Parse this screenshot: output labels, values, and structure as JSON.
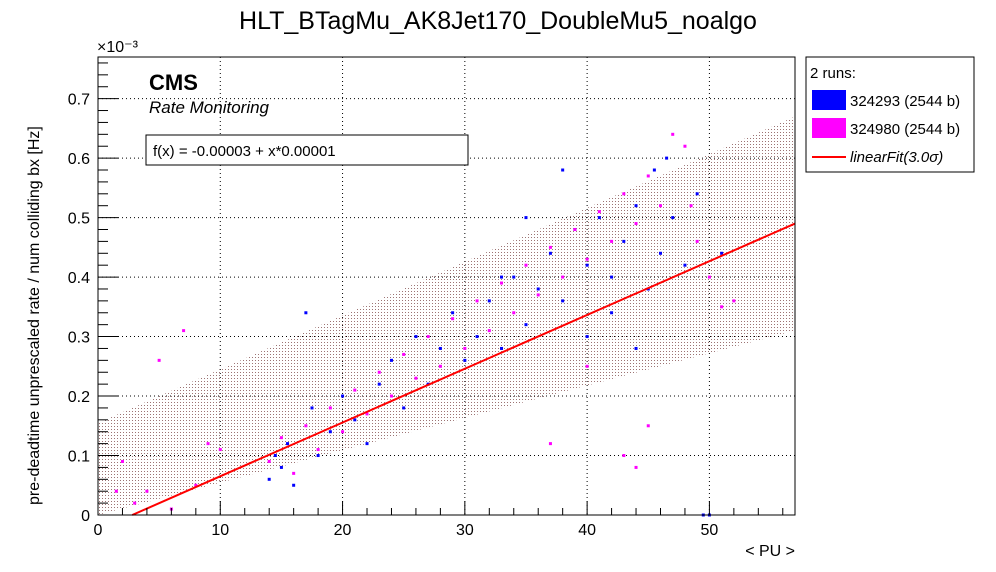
{
  "chart_data": {
    "type": "scatter",
    "title": "HLT_BTagMu_AK8Jet170_DoubleMu5_noalgo",
    "xlabel": "< PU >",
    "ylabel": "pre-deadtime unprescaled rate / num colliding bx [Hz]",
    "y_multiplier": "×10⁻³",
    "xlim": [
      0,
      57
    ],
    "ylim": [
      0,
      0.77
    ],
    "x_ticks": [
      "0",
      "10",
      "20",
      "30",
      "40",
      "50"
    ],
    "y_ticks": [
      "0",
      "0.1",
      "0.2",
      "0.3",
      "0.4",
      "0.5",
      "0.6",
      "0.7"
    ],
    "grid": true,
    "legend_position": "right, outside plot",
    "legend_header": "2 runs:",
    "series": [
      {
        "name": "324293 (2544 b)",
        "color": "#0000ff",
        "points": [
          [
            14,
            0.06
          ],
          [
            14.5,
            0.1
          ],
          [
            15,
            0.08
          ],
          [
            15.5,
            0.12
          ],
          [
            16,
            0.05
          ],
          [
            17,
            0.34
          ],
          [
            17.5,
            0.18
          ],
          [
            18,
            0.1
          ],
          [
            19,
            0.14
          ],
          [
            20,
            0.2
          ],
          [
            21,
            0.16
          ],
          [
            22,
            0.12
          ],
          [
            23,
            0.22
          ],
          [
            24,
            0.26
          ],
          [
            25,
            0.18
          ],
          [
            26,
            0.3
          ],
          [
            27,
            0.22
          ],
          [
            28,
            0.28
          ],
          [
            29,
            0.34
          ],
          [
            30,
            0.26
          ],
          [
            31,
            0.3
          ],
          [
            32,
            0.36
          ],
          [
            33,
            0.28
          ],
          [
            34,
            0.4
          ],
          [
            35,
            0.32
          ],
          [
            36,
            0.38
          ],
          [
            37,
            0.44
          ],
          [
            38,
            0.36
          ],
          [
            39,
            0.48
          ],
          [
            40,
            0.42
          ],
          [
            41,
            0.5
          ],
          [
            42,
            0.4
          ],
          [
            43,
            0.46
          ],
          [
            44,
            0.52
          ],
          [
            45,
            0.38
          ],
          [
            45.5,
            0.58
          ],
          [
            46,
            0.44
          ],
          [
            46.5,
            0.6
          ],
          [
            47,
            0.5
          ],
          [
            48,
            0.42
          ],
          [
            49,
            0.54
          ],
          [
            49.5,
            0.0
          ],
          [
            50,
            0.0
          ],
          [
            51,
            0.44
          ],
          [
            38,
            0.58
          ],
          [
            40,
            0.3
          ],
          [
            42,
            0.34
          ],
          [
            44,
            0.28
          ],
          [
            35,
            0.5
          ],
          [
            33,
            0.4
          ]
        ]
      },
      {
        "name": "324980 (2544 b)",
        "color": "#ff00ff",
        "points": [
          [
            1.5,
            0.04
          ],
          [
            2,
            0.09
          ],
          [
            3,
            0.02
          ],
          [
            4,
            0.04
          ],
          [
            5,
            0.26
          ],
          [
            6,
            0.01
          ],
          [
            7,
            0.31
          ],
          [
            8,
            0.05
          ],
          [
            9,
            0.12
          ],
          [
            10,
            0.11
          ],
          [
            14,
            0.09
          ],
          [
            15,
            0.13
          ],
          [
            16,
            0.07
          ],
          [
            17,
            0.15
          ],
          [
            18,
            0.11
          ],
          [
            19,
            0.18
          ],
          [
            20,
            0.14
          ],
          [
            21,
            0.21
          ],
          [
            22,
            0.17
          ],
          [
            23,
            0.24
          ],
          [
            24,
            0.2
          ],
          [
            25,
            0.27
          ],
          [
            26,
            0.23
          ],
          [
            27,
            0.3
          ],
          [
            28,
            0.25
          ],
          [
            29,
            0.33
          ],
          [
            30,
            0.28
          ],
          [
            31,
            0.36
          ],
          [
            32,
            0.31
          ],
          [
            33,
            0.39
          ],
          [
            34,
            0.34
          ],
          [
            35,
            0.42
          ],
          [
            36,
            0.37
          ],
          [
            37,
            0.45
          ],
          [
            38,
            0.4
          ],
          [
            39,
            0.48
          ],
          [
            40,
            0.43
          ],
          [
            41,
            0.51
          ],
          [
            42,
            0.46
          ],
          [
            43,
            0.54
          ],
          [
            44,
            0.49
          ],
          [
            45,
            0.57
          ],
          [
            46,
            0.52
          ],
          [
            47,
            0.64
          ],
          [
            48,
            0.62
          ],
          [
            48.5,
            0.52
          ],
          [
            49,
            0.46
          ],
          [
            50,
            0.4
          ],
          [
            51,
            0.35
          ],
          [
            52,
            0.36
          ],
          [
            43,
            0.1
          ],
          [
            44,
            0.08
          ],
          [
            45,
            0.15
          ],
          [
            37,
            0.12
          ],
          [
            40,
            0.25
          ]
        ]
      }
    ],
    "fit": {
      "name": "linearFit(3.0σ)",
      "color": "#ff0000",
      "label": "f(x) = -0.00003 + x*0.00001",
      "x_range": [
        2.8,
        57
      ],
      "y_range": [
        0,
        0.49
      ],
      "band_halfwidth": 0.18
    },
    "annotations": {
      "cms": "CMS",
      "subtitle": "Rate Monitoring"
    }
  }
}
